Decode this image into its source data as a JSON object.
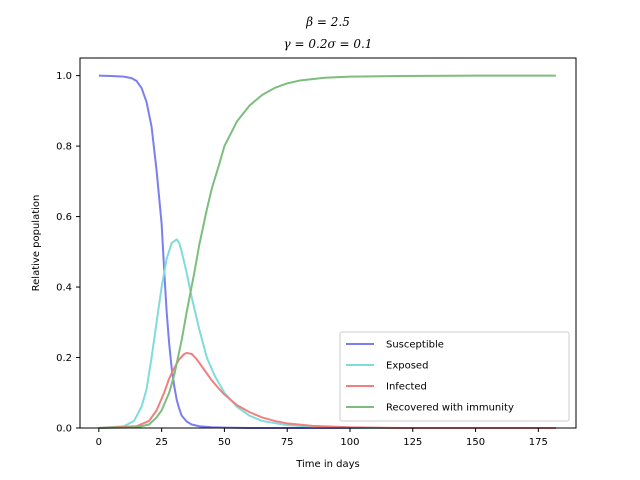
{
  "chart_data": {
    "type": "line",
    "title_line1": "β = 2.5",
    "title_line2": "γ = 0.2σ = 0.1",
    "xlabel": "Time in days",
    "ylabel": "Relative population",
    "xlim": [
      -7.5,
      190
    ],
    "ylim": [
      0,
      1.05
    ],
    "xticks": [
      0,
      25,
      50,
      75,
      100,
      125,
      150,
      175
    ],
    "xtick_labels": [
      "0",
      "25",
      "50",
      "75",
      "100",
      "125",
      "150",
      "175"
    ],
    "yticks": [
      0.0,
      0.2,
      0.4,
      0.6,
      0.8,
      1.0
    ],
    "ytick_labels": [
      "0.0",
      "0.2",
      "0.4",
      "0.6",
      "0.8",
      "1.0"
    ],
    "grid": false,
    "legend_position": "lower-right",
    "series": [
      {
        "name": "Susceptible",
        "color": "#7b7ef0",
        "points": [
          [
            0,
            1.0
          ],
          [
            5,
            0.999
          ],
          [
            10,
            0.997
          ],
          [
            13,
            0.993
          ],
          [
            15,
            0.985
          ],
          [
            17,
            0.965
          ],
          [
            19,
            0.925
          ],
          [
            21,
            0.855
          ],
          [
            23,
            0.73
          ],
          [
            25,
            0.58
          ],
          [
            26,
            0.45
          ],
          [
            27,
            0.33
          ],
          [
            28,
            0.24
          ],
          [
            29,
            0.17
          ],
          [
            30,
            0.12
          ],
          [
            31,
            0.08
          ],
          [
            32,
            0.055
          ],
          [
            33,
            0.035
          ],
          [
            35,
            0.018
          ],
          [
            37,
            0.01
          ],
          [
            40,
            0.005
          ],
          [
            45,
            0.002
          ],
          [
            50,
            0.001
          ],
          [
            60,
            0.0
          ],
          [
            80,
            0.0
          ],
          [
            120,
            0.0
          ],
          [
            182,
            0.0
          ]
        ]
      },
      {
        "name": "Exposed",
        "color": "#7fdbdc",
        "points": [
          [
            0,
            0.0
          ],
          [
            10,
            0.005
          ],
          [
            14,
            0.02
          ],
          [
            17,
            0.06
          ],
          [
            19,
            0.11
          ],
          [
            21,
            0.2
          ],
          [
            23,
            0.3
          ],
          [
            25,
            0.4
          ],
          [
            27,
            0.48
          ],
          [
            29,
            0.525
          ],
          [
            31,
            0.535
          ],
          [
            32,
            0.525
          ],
          [
            33,
            0.5
          ],
          [
            35,
            0.44
          ],
          [
            37,
            0.37
          ],
          [
            40,
            0.28
          ],
          [
            43,
            0.2
          ],
          [
            46,
            0.15
          ],
          [
            50,
            0.1
          ],
          [
            55,
            0.06
          ],
          [
            60,
            0.035
          ],
          [
            65,
            0.02
          ],
          [
            75,
            0.008
          ],
          [
            90,
            0.002
          ],
          [
            110,
            0.0
          ],
          [
            182,
            0.0
          ]
        ]
      },
      {
        "name": "Infected",
        "color": "#f08080",
        "points": [
          [
            0,
            0.0
          ],
          [
            15,
            0.005
          ],
          [
            20,
            0.02
          ],
          [
            23,
            0.05
          ],
          [
            26,
            0.1
          ],
          [
            28,
            0.14
          ],
          [
            30,
            0.17
          ],
          [
            32,
            0.195
          ],
          [
            34,
            0.21
          ],
          [
            35,
            0.213
          ],
          [
            37,
            0.21
          ],
          [
            39,
            0.195
          ],
          [
            42,
            0.165
          ],
          [
            45,
            0.135
          ],
          [
            48,
            0.11
          ],
          [
            50,
            0.095
          ],
          [
            55,
            0.065
          ],
          [
            60,
            0.045
          ],
          [
            65,
            0.03
          ],
          [
            70,
            0.02
          ],
          [
            75,
            0.013
          ],
          [
            85,
            0.006
          ],
          [
            100,
            0.002
          ],
          [
            120,
            0.0
          ],
          [
            182,
            0.0
          ]
        ]
      },
      {
        "name": "Recovered with immunity",
        "color": "#7dbd7d",
        "points": [
          [
            0,
            0.0
          ],
          [
            15,
            0.002
          ],
          [
            20,
            0.01
          ],
          [
            23,
            0.03
          ],
          [
            25,
            0.05
          ],
          [
            28,
            0.1
          ],
          [
            30,
            0.15
          ],
          [
            33,
            0.25
          ],
          [
            35,
            0.33
          ],
          [
            38,
            0.44
          ],
          [
            40,
            0.52
          ],
          [
            43,
            0.62
          ],
          [
            45,
            0.68
          ],
          [
            48,
            0.75
          ],
          [
            50,
            0.8
          ],
          [
            55,
            0.87
          ],
          [
            60,
            0.915
          ],
          [
            65,
            0.945
          ],
          [
            70,
            0.965
          ],
          [
            75,
            0.978
          ],
          [
            80,
            0.986
          ],
          [
            90,
            0.994
          ],
          [
            100,
            0.997
          ],
          [
            120,
            0.999
          ],
          [
            150,
            1.0
          ],
          [
            182,
            1.0
          ]
        ]
      }
    ]
  }
}
